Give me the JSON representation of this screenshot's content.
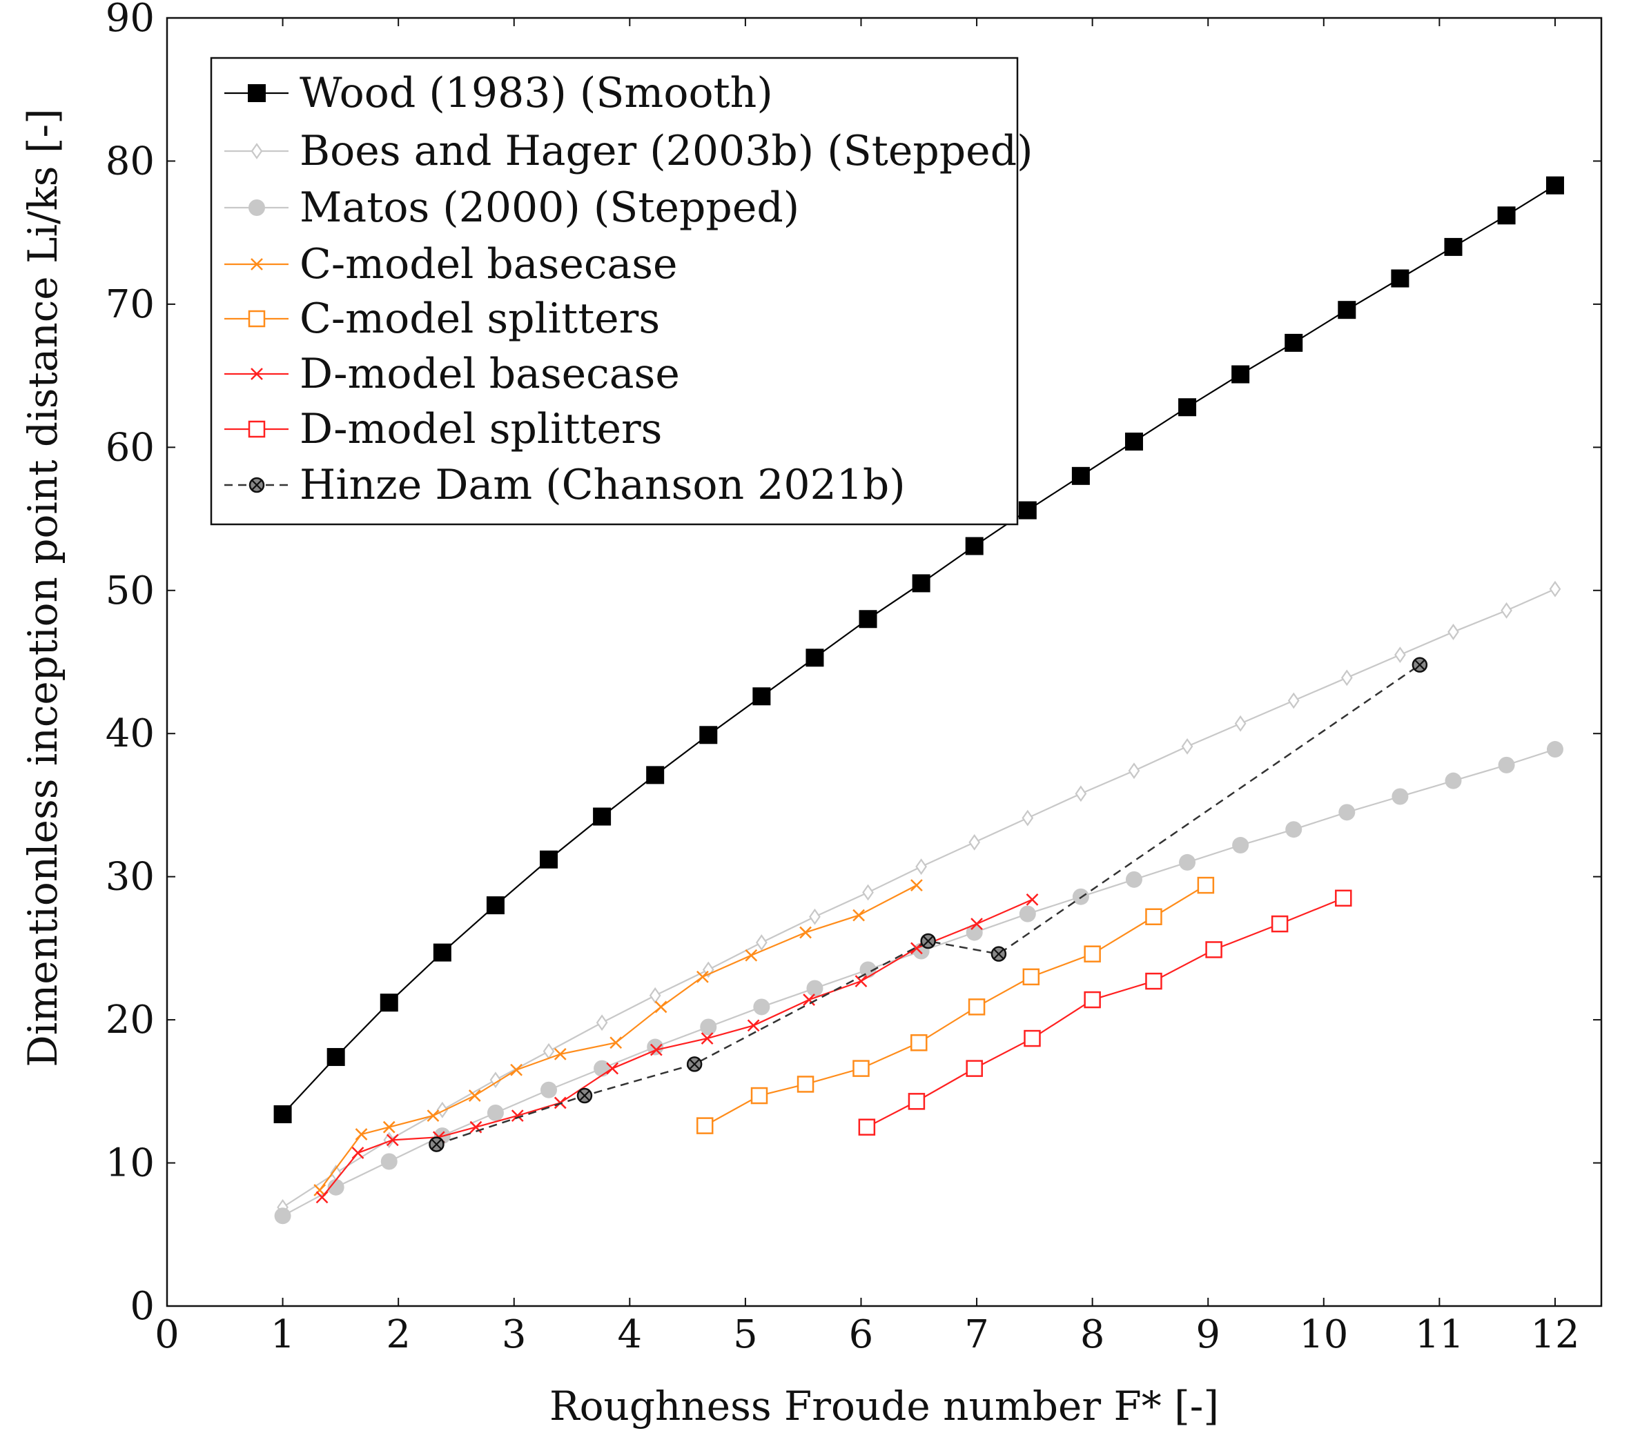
{
  "chart_data": {
    "type": "line",
    "xlabel": "Roughness Froude number F* [-]",
    "ylabel": "Dimentionless inception point distance Li/ks [-]",
    "xlim": [
      0,
      12.4
    ],
    "ylim": [
      0,
      90
    ],
    "xticks": [
      0,
      1,
      2,
      3,
      4,
      5,
      6,
      7,
      8,
      9,
      10,
      11,
      12
    ],
    "yticks": [
      0,
      10,
      20,
      30,
      40,
      50,
      60,
      70,
      80,
      90
    ],
    "legend_position": "top-left",
    "grid": false,
    "series": [
      {
        "name": "Wood (1983) (Smooth)",
        "color": "#000000",
        "marker": "filled-square",
        "dash": "solid",
        "x": [
          1,
          1.46,
          1.92,
          2.38,
          2.84,
          3.3,
          3.76,
          4.22,
          4.68,
          5.14,
          5.6,
          6.06,
          6.52,
          6.98,
          7.44,
          7.9,
          8.36,
          8.82,
          9.28,
          9.74,
          10.2,
          10.66,
          11.12,
          11.58,
          12.0
        ],
        "y": [
          13.4,
          17.4,
          21.2,
          24.7,
          28.0,
          31.2,
          34.2,
          37.1,
          39.9,
          42.6,
          45.3,
          48.0,
          50.5,
          53.1,
          55.6,
          58.0,
          60.4,
          62.8,
          65.1,
          67.3,
          69.6,
          71.8,
          74.0,
          76.2,
          78.3
        ]
      },
      {
        "name": "Boes and Hager (2003b) (Stepped)",
        "color": "#c8c8c8",
        "marker": "open-diamond",
        "dash": "solid",
        "x": [
          1,
          1.46,
          1.92,
          2.38,
          2.84,
          3.3,
          3.76,
          4.22,
          4.68,
          5.14,
          5.6,
          6.06,
          6.52,
          6.98,
          7.44,
          7.9,
          8.36,
          8.82,
          9.28,
          9.74,
          10.2,
          10.66,
          11.12,
          11.58,
          12.0
        ],
        "y": [
          6.9,
          9.3,
          11.6,
          13.7,
          15.8,
          17.8,
          19.8,
          21.7,
          23.5,
          25.4,
          27.2,
          28.9,
          30.7,
          32.4,
          34.1,
          35.8,
          37.4,
          39.1,
          40.7,
          42.3,
          43.9,
          45.5,
          47.1,
          48.6,
          50.1
        ]
      },
      {
        "name": "Matos (2000) (Stepped)",
        "color": "#c8c8c8",
        "marker": "filled-circle",
        "dash": "solid",
        "x": [
          1,
          1.46,
          1.92,
          2.38,
          2.84,
          3.3,
          3.76,
          4.22,
          4.68,
          5.14,
          5.6,
          6.06,
          6.52,
          6.98,
          7.44,
          7.9,
          8.36,
          8.82,
          9.28,
          9.74,
          10.2,
          10.66,
          11.12,
          11.58,
          12.0
        ],
        "y": [
          6.3,
          8.3,
          10.1,
          11.9,
          13.5,
          15.1,
          16.6,
          18.1,
          19.5,
          20.9,
          22.2,
          23.5,
          24.8,
          26.1,
          27.4,
          28.6,
          29.8,
          31.0,
          32.2,
          33.3,
          34.5,
          35.6,
          36.7,
          37.8,
          38.9
        ]
      },
      {
        "name": "C-model basecase",
        "color": "#ff8c1a",
        "marker": "cross",
        "dash": "solid",
        "x": [
          1.32,
          1.68,
          1.92,
          2.3,
          2.66,
          3.02,
          3.4,
          3.88,
          4.27,
          4.63,
          5.05,
          5.52,
          5.98,
          6.48
        ],
        "y": [
          8.1,
          12.0,
          12.5,
          13.3,
          14.7,
          16.5,
          17.6,
          18.4,
          20.9,
          23.0,
          24.5,
          26.1,
          27.3,
          29.4
        ]
      },
      {
        "name": "C-model splitters",
        "color": "#ff8c1a",
        "marker": "open-square",
        "dash": "solid",
        "x": [
          4.65,
          5.12,
          5.52,
          6.0,
          6.5,
          7.0,
          7.47,
          8.0,
          8.53,
          8.98
        ],
        "y": [
          12.6,
          14.7,
          15.5,
          16.6,
          18.4,
          20.9,
          23.0,
          24.6,
          27.2,
          29.4
        ]
      },
      {
        "name": "D-model basecase",
        "color": "#ff2020",
        "marker": "cross",
        "dash": "solid",
        "x": [
          1.34,
          1.65,
          1.95,
          2.35,
          2.67,
          3.03,
          3.4,
          3.85,
          4.23,
          4.67,
          5.07,
          5.55,
          6.0,
          6.48,
          7.0,
          7.48
        ],
        "y": [
          7.6,
          10.7,
          11.6,
          11.8,
          12.5,
          13.3,
          14.2,
          16.6,
          17.9,
          18.7,
          19.6,
          21.4,
          22.7,
          25.0,
          26.7,
          28.4
        ]
      },
      {
        "name": "D-model splitters",
        "color": "#ff2020",
        "marker": "open-square",
        "dash": "solid",
        "x": [
          6.05,
          6.48,
          6.98,
          7.48,
          8.0,
          8.53,
          9.05,
          9.62,
          10.17
        ],
        "y": [
          12.5,
          14.3,
          16.6,
          18.7,
          21.4,
          22.7,
          24.9,
          26.7,
          28.5
        ]
      },
      {
        "name": "Hinze Dam (Chanson 2021b)",
        "color": "#333333",
        "marker": "crossed-circle",
        "dash": "dashed",
        "x": [
          2.33,
          3.61,
          4.56,
          6.58,
          7.19,
          10.83
        ],
        "y": [
          11.3,
          14.7,
          16.9,
          25.5,
          24.6,
          44.8
        ]
      }
    ]
  }
}
